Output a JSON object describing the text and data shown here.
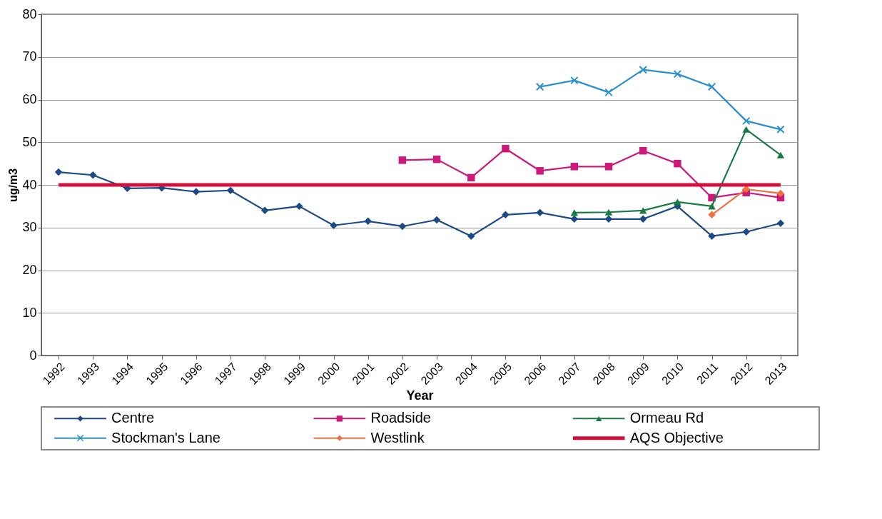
{
  "chart_data": {
    "type": "line",
    "xlabel": "Year",
    "ylabel": "ug/m3",
    "categories": [
      "1992",
      "1993",
      "1994",
      "1995",
      "1996",
      "1997",
      "1998",
      "1999",
      "2000",
      "2001",
      "2002",
      "2003",
      "2004",
      "2005",
      "2006",
      "2007",
      "2008",
      "2009",
      "2010",
      "2011",
      "2012",
      "2013"
    ],
    "ylim": [
      0,
      80
    ],
    "yticks": [
      0,
      10,
      20,
      30,
      40,
      50,
      60,
      70,
      80
    ],
    "grid": "y",
    "legend": "bottom",
    "series": [
      {
        "name": "Centre",
        "color": "#1b4a86",
        "marker": "diamond",
        "values": [
          43,
          42.3,
          39.2,
          39.3,
          38.4,
          38.7,
          34,
          35,
          30.5,
          31.5,
          30.3,
          31.8,
          28,
          33,
          33.5,
          32,
          32,
          32,
          35,
          28,
          29,
          31
        ]
      },
      {
        "name": "Roadside",
        "color": "#cc1a7a",
        "marker": "square",
        "values": [
          null,
          null,
          null,
          null,
          null,
          null,
          null,
          null,
          null,
          null,
          45.8,
          46,
          41.7,
          48.5,
          43.3,
          44.3,
          44.3,
          48,
          45,
          37,
          38.2,
          37
        ]
      },
      {
        "name": "Ormeau Rd",
        "color": "#1a7a45",
        "marker": "triangle",
        "values": [
          null,
          null,
          null,
          null,
          null,
          null,
          null,
          null,
          null,
          null,
          null,
          null,
          null,
          null,
          null,
          33.5,
          33.6,
          34,
          36,
          35,
          53,
          47
        ]
      },
      {
        "name": "Stockman's Lane",
        "color": "#2b8fcc",
        "marker": "cross",
        "values": [
          null,
          null,
          null,
          null,
          null,
          null,
          null,
          null,
          null,
          null,
          null,
          null,
          null,
          null,
          63,
          64.5,
          61.7,
          67,
          66,
          63,
          55,
          53
        ]
      },
      {
        "name": "Westlink",
        "color": "#f07040",
        "marker": "diamond",
        "values": [
          null,
          null,
          null,
          null,
          null,
          null,
          null,
          null,
          null,
          null,
          null,
          null,
          null,
          null,
          null,
          null,
          null,
          null,
          null,
          33,
          39,
          38
        ]
      },
      {
        "name": "AQS Objective",
        "color": "#d0103a",
        "marker": "none",
        "values": [
          40,
          40,
          40,
          40,
          40,
          40,
          40,
          40,
          40,
          40,
          40,
          40,
          40,
          40,
          40,
          40,
          40,
          40,
          40,
          40,
          40,
          40
        ]
      }
    ]
  }
}
